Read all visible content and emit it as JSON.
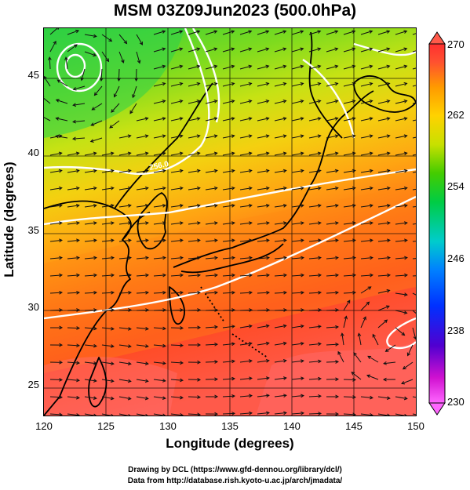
{
  "title": "MSM 03Z09Jun2023 (500.0hPa)",
  "x_axis": {
    "label": "Longitude (degrees)",
    "range": [
      120,
      150
    ],
    "ticks": [
      "120",
      "125",
      "130",
      "135",
      "140",
      "145",
      "150"
    ]
  },
  "y_axis": {
    "label": "Latitude  (degrees)",
    "range": [
      22.5,
      47.5
    ],
    "ticks": [
      "45",
      "40",
      "35",
      "30",
      "25"
    ]
  },
  "colorbar": {
    "range": [
      230,
      270
    ],
    "ticks": [
      "270",
      "262",
      "254",
      "246",
      "238",
      "230"
    ],
    "colors": [
      "#ff66ff",
      "#d011d0",
      "#5000d0",
      "#0030ff",
      "#0080ff",
      "#00cccc",
      "#00cc44",
      "#44cc00",
      "#c8e000",
      "#ffd200",
      "#ff9a00",
      "#ff5030",
      "#ff3030"
    ]
  },
  "contour_label": "256.0",
  "credits": {
    "line1": "Drawing by DCL (https://www.gfd-dennou.org/library/dcl/)",
    "line2": "Data from http://database.rish.kyoto-u.ac.jp/arch/jmadata/"
  }
}
